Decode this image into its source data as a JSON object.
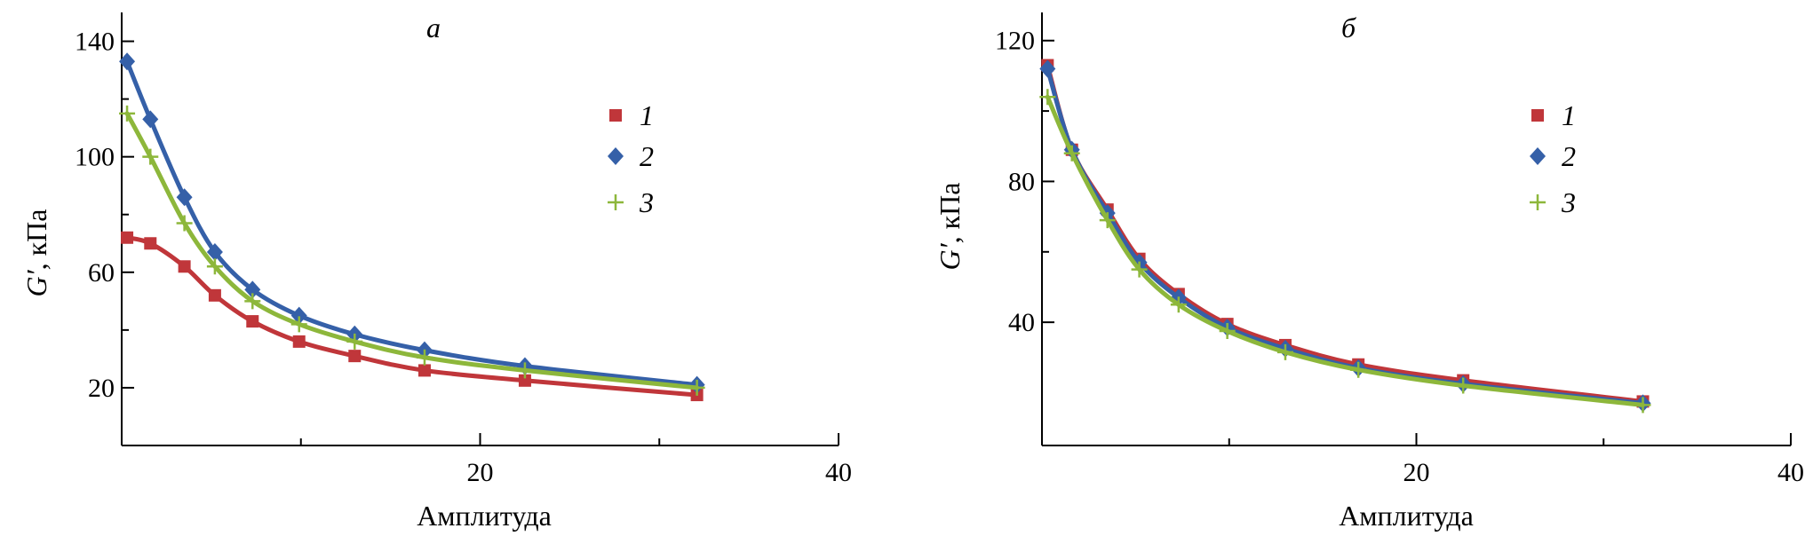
{
  "chart_data": [
    {
      "type": "line",
      "panel_label": "а",
      "xlabel": "Амплитуда",
      "ylabel": "G′, кПа",
      "ylabel_symbol": "G′",
      "ylabel_unit": ", кПа",
      "xlim": [
        0,
        40
      ],
      "ylim": [
        0,
        150
      ],
      "xticks": [
        20,
        40
      ],
      "xtick_labels": [
        "20",
        "40"
      ],
      "yticks": [
        20,
        60,
        100,
        140
      ],
      "ytick_labels": [
        "20",
        "60",
        "100",
        "140"
      ],
      "legend_position": "right",
      "series": [
        {
          "name": "1",
          "color": "#c0363a",
          "marker": "square",
          "x": [
            0.3,
            1.6,
            3.5,
            5.2,
            7.3,
            9.9,
            13.0,
            16.9,
            22.5,
            32.1
          ],
          "y": [
            72,
            70,
            62,
            52,
            43,
            36,
            31,
            26,
            22.5,
            17.5
          ]
        },
        {
          "name": "2",
          "color": "#3560a8",
          "marker": "diamond",
          "x": [
            0.3,
            1.6,
            3.5,
            5.2,
            7.3,
            9.9,
            13.0,
            16.9,
            22.5,
            32.1
          ],
          "y": [
            133,
            113,
            86,
            67,
            54,
            45,
            38.5,
            33,
            27.5,
            21
          ]
        },
        {
          "name": "3",
          "color": "#8db73b",
          "marker": "plus",
          "x": [
            0.3,
            1.6,
            3.5,
            5.2,
            7.3,
            9.9,
            13.0,
            16.9,
            22.5,
            32.1
          ],
          "y": [
            115,
            100,
            77,
            62,
            50,
            42,
            36,
            30.5,
            26,
            20
          ]
        }
      ]
    },
    {
      "type": "line",
      "panel_label": "б",
      "xlabel": "Амплитуда",
      "ylabel": "G′, кПа",
      "ylabel_symbol": "G′",
      "ylabel_unit": ", кПа",
      "xlim": [
        0,
        40
      ],
      "ylim": [
        5,
        128
      ],
      "xticks": [
        20,
        40
      ],
      "xtick_labels": [
        "20",
        "40"
      ],
      "yticks": [
        40,
        80,
        120
      ],
      "ytick_labels": [
        "40",
        "80",
        "120"
      ],
      "legend_position": "right",
      "series": [
        {
          "name": "1",
          "color": "#c0363a",
          "marker": "square",
          "x": [
            0.3,
            1.6,
            3.5,
            5.2,
            7.3,
            9.9,
            13.0,
            16.9,
            22.5,
            32.1
          ],
          "y": [
            113,
            89,
            72,
            58,
            48,
            39.5,
            33.5,
            28,
            23.5,
            17.5
          ]
        },
        {
          "name": "2",
          "color": "#3560a8",
          "marker": "diamond",
          "x": [
            0.3,
            1.6,
            3.5,
            5.2,
            7.3,
            9.9,
            13.0,
            16.9,
            22.5,
            32.1
          ],
          "y": [
            112,
            89,
            71,
            57,
            47,
            38.5,
            32.5,
            27,
            22.5,
            17
          ]
        },
        {
          "name": "3",
          "color": "#8db73b",
          "marker": "plus",
          "x": [
            0.3,
            1.6,
            3.5,
            5.2,
            7.3,
            9.9,
            13.0,
            16.9,
            22.5,
            32.1
          ],
          "y": [
            104,
            88,
            69,
            55,
            45,
            37.5,
            31.5,
            26.5,
            22,
            16.5
          ]
        }
      ]
    }
  ]
}
